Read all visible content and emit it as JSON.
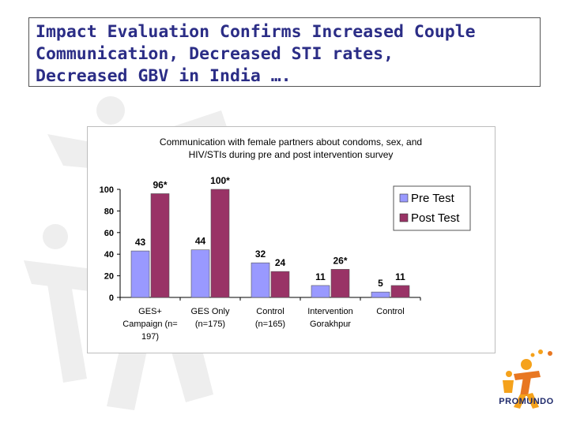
{
  "slide": {
    "title_lines": [
      "Impact Evaluation Confirms Increased Couple",
      "Communication, Decreased STI rates,",
      "Decreased GBV in India …."
    ]
  },
  "logo": {
    "text": "PROMUNDO",
    "icon": "promundo-figures-icon",
    "colors": [
      "#f5a21b",
      "#e87722",
      "#1f2a6b"
    ]
  },
  "chart_data": {
    "type": "bar",
    "title_lines": [
      "Communication with female partners about condoms, sex, and",
      "HIV/STIs during pre and post intervention survey"
    ],
    "categories": [
      [
        "GES+",
        "Campaign (n=",
        "197)"
      ],
      [
        "GES Only",
        "(n=175)"
      ],
      [
        "Control",
        "(n=165)"
      ],
      [
        "Intervention",
        "Gorakhpur"
      ],
      [
        "Control"
      ]
    ],
    "series": [
      {
        "name": "Pre Test",
        "color": "#9999ff",
        "values": [
          43,
          44,
          32,
          11,
          5
        ],
        "labels": [
          "43",
          "44",
          "32",
          "11",
          "5"
        ]
      },
      {
        "name": "Post Test",
        "color": "#993366",
        "values": [
          96,
          100,
          24,
          26,
          11
        ],
        "labels": [
          "96*",
          "100*",
          "24",
          "26*",
          "11"
        ]
      }
    ],
    "yticks": [
      "0",
      "20",
      "40",
      "60",
      "80",
      "100"
    ],
    "ylim": [
      0,
      100
    ],
    "grid": false,
    "legend": "right"
  }
}
